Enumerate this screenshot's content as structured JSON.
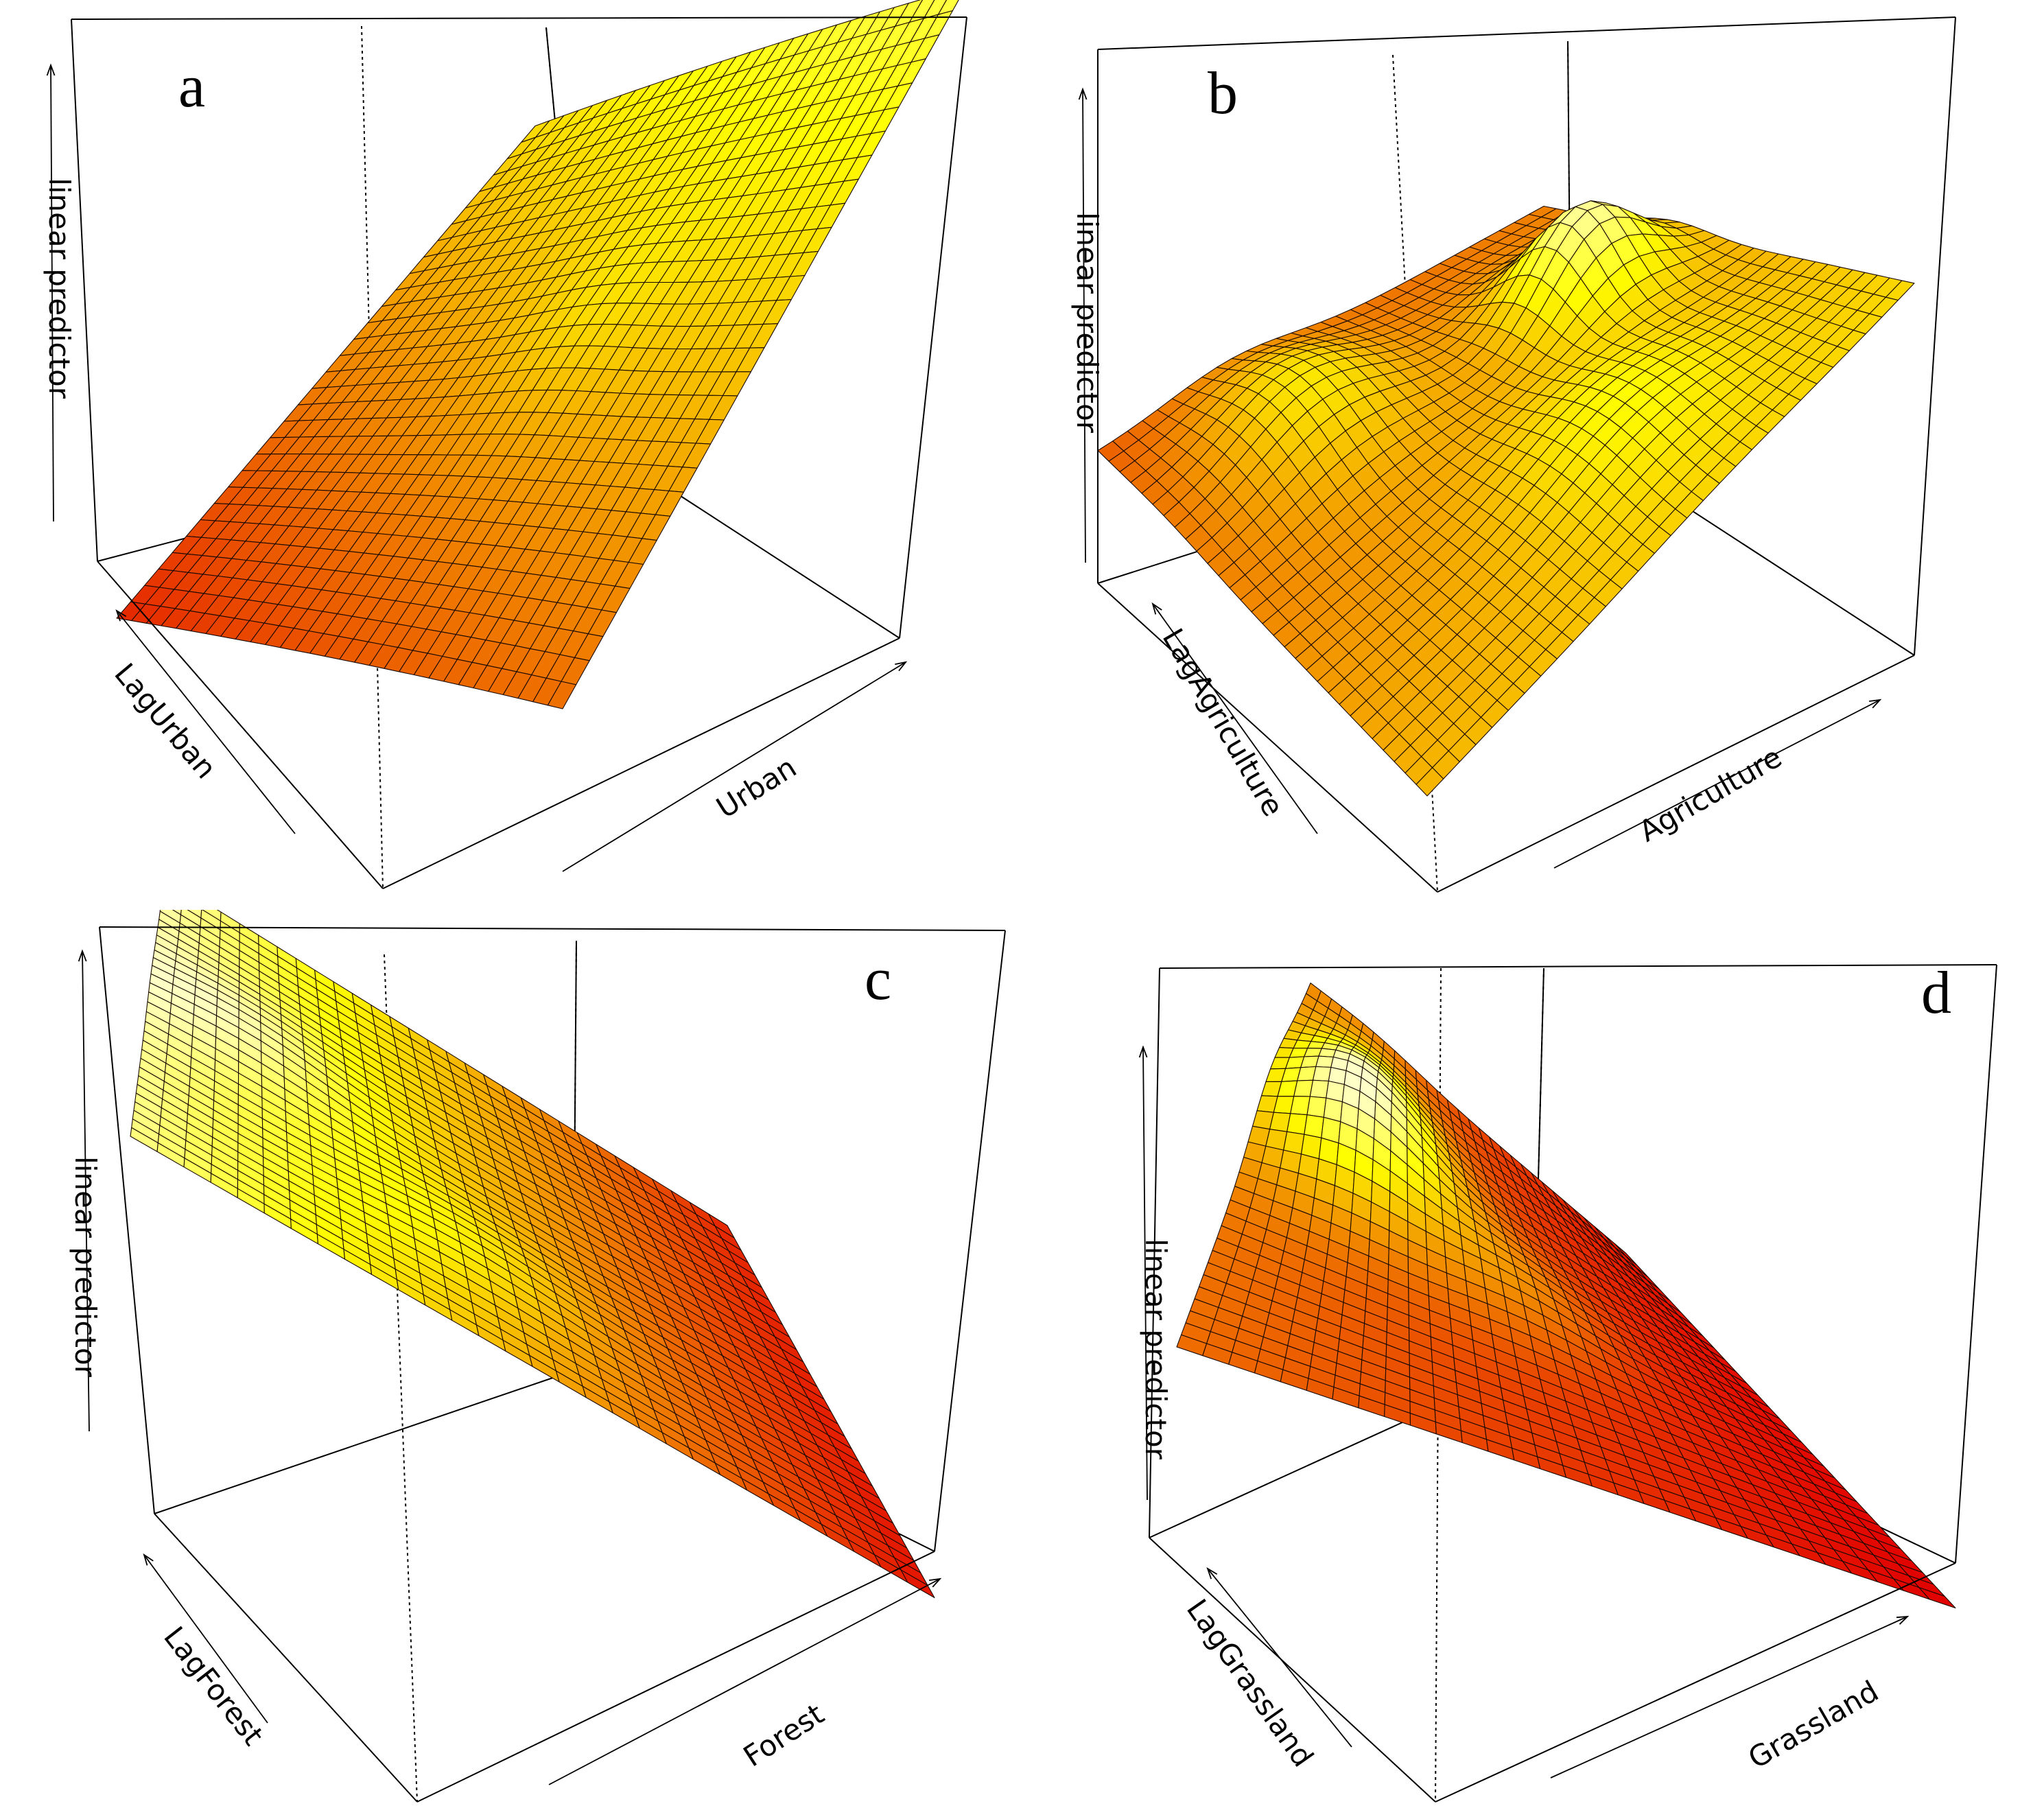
{
  "chart_data": [
    {
      "type": "surface",
      "panel": "a",
      "xlabel": "Urban",
      "ylabel": "LagUrban",
      "zlabel": "linear predictor",
      "surface": {
        "base": 0.1,
        "slope_x": 0.35,
        "slope_y": 0.5,
        "curv_x": -0.15,
        "bumps": [
          [
            0.55,
            0.55,
            0.08,
            0.12
          ]
        ]
      }
    },
    {
      "type": "surface",
      "panel": "b",
      "xlabel": "Agriculture",
      "ylabel": "LagAgriculture",
      "zlabel": "linear predictor",
      "surface": {
        "base": 0.25,
        "slope_x": 0.25,
        "slope_y": 0.1,
        "curv_x": 0,
        "bumps": [
          [
            0.35,
            0.8,
            0.5,
            0.1
          ],
          [
            0.2,
            0.3,
            0.3,
            0.14
          ],
          [
            0.7,
            0.6,
            0.2,
            0.15
          ]
        ]
      }
    },
    {
      "type": "surface",
      "panel": "c",
      "xlabel": "Forest",
      "ylabel": "LagForest",
      "zlabel": "linear predictor",
      "surface": {
        "base": 0.9,
        "slope_x": -0.85,
        "slope_y": 0.05,
        "curv_x": 0,
        "bumps": [
          [
            0.15,
            0.6,
            0.15,
            0.12
          ],
          [
            0.45,
            0.3,
            0.12,
            0.12
          ]
        ]
      }
    },
    {
      "type": "surface",
      "panel": "d",
      "xlabel": "Grassland",
      "ylabel": "LagGrassland",
      "zlabel": "linear predictor",
      "surface": {
        "base": 0.3,
        "slope_x": -0.3,
        "slope_y": 0.05,
        "curv_x": 0,
        "bumps": [
          [
            0.2,
            0.7,
            0.75,
            0.14
          ],
          [
            0.5,
            0.5,
            0.2,
            0.12
          ]
        ]
      }
    }
  ]
}
